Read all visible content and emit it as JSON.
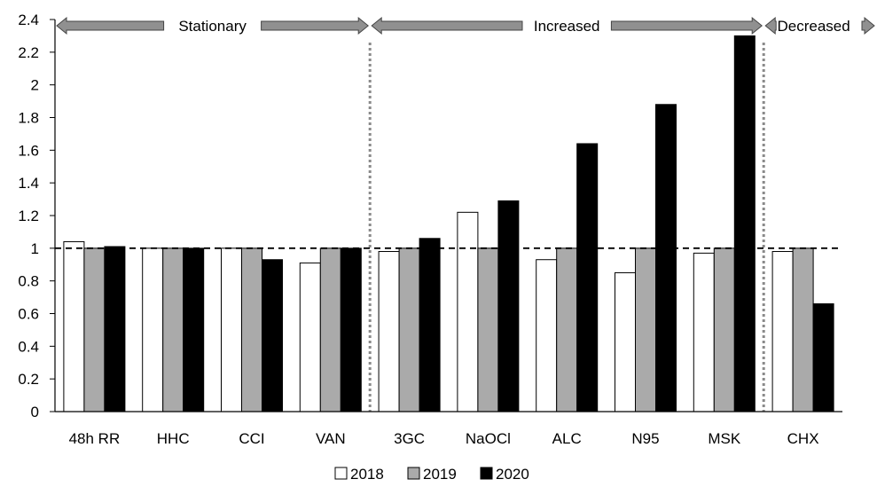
{
  "chart_data": {
    "type": "bar",
    "categories": [
      "48h RR",
      "HHC",
      "CCI",
      "VAN",
      "3GC",
      "NaOCl",
      "ALC",
      "N95",
      "MSK",
      "CHX"
    ],
    "series": [
      {
        "name": "2018",
        "color": "#ffffff",
        "values": [
          1.04,
          1.0,
          1.0,
          0.91,
          0.98,
          1.22,
          0.93,
          0.85,
          0.97,
          0.98
        ]
      },
      {
        "name": "2019",
        "color": "#aaaaaa",
        "values": [
          1.0,
          1.0,
          1.0,
          1.0,
          1.0,
          1.0,
          1.0,
          1.0,
          1.0,
          1.0
        ]
      },
      {
        "name": "2020",
        "color": "#000000",
        "values": [
          1.01,
          1.0,
          0.93,
          1.0,
          1.06,
          1.29,
          1.64,
          1.88,
          2.3,
          0.66
        ]
      }
    ],
    "ylim": [
      0,
      2.4
    ],
    "yticks": [
      "0",
      "0.2",
      "0.4",
      "0.6",
      "0.8",
      "1",
      "1.2",
      "1.4",
      "1.6",
      "1.8",
      "2",
      "2.2",
      "2.4"
    ],
    "reference_line": 1,
    "regions": [
      {
        "label": "Stationary",
        "start": 0,
        "end": 3
      },
      {
        "label": "Increased",
        "start": 4,
        "end": 8
      },
      {
        "label": "Decreased",
        "start": 9,
        "end": 9
      }
    ],
    "legend_position": "bottom",
    "grid": false
  }
}
